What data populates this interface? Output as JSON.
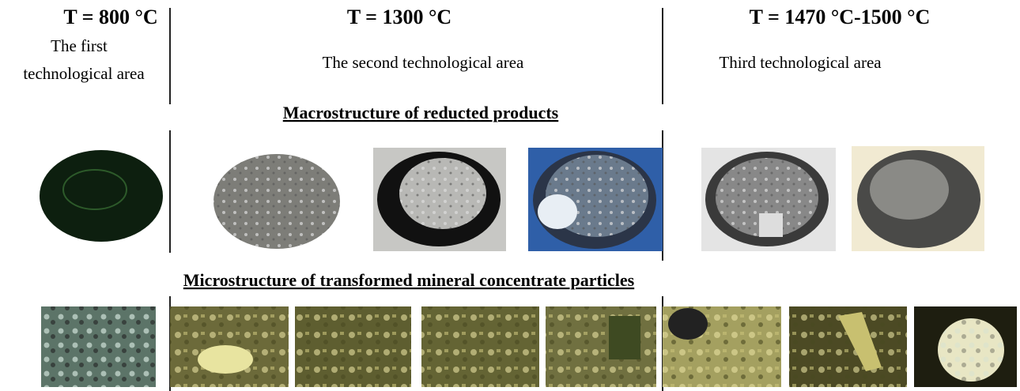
{
  "zones": [
    {
      "temperature": "T = 800 °C",
      "label": [
        "The first",
        "technological area"
      ]
    },
    {
      "temperature": "T = 1300 °C",
      "label": [
        "The second technological area"
      ]
    },
    {
      "temperature": "T = 1470 °C-1500 °C",
      "label": [
        "Third technological area"
      ]
    }
  ],
  "sections": {
    "macro": "Macrostructure of reducted products",
    "micro": "Microstructure of transformed mineral concentrate particles"
  }
}
